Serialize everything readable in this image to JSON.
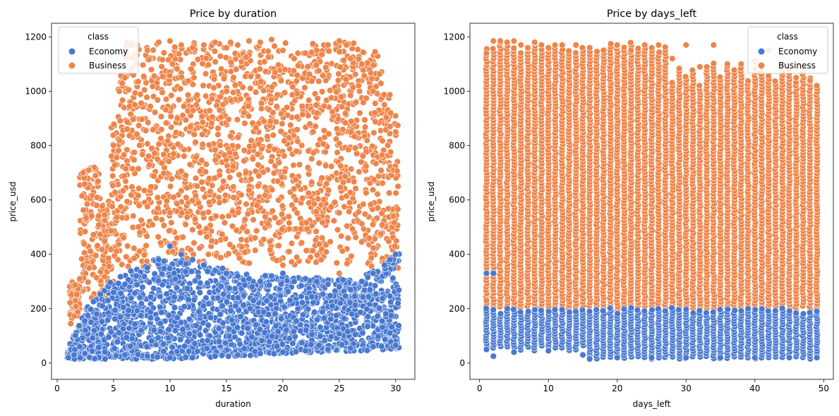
{
  "figure": {
    "charts": [
      {
        "title": "Price by duration",
        "xlabel": "duration",
        "ylabel": "price_usd",
        "legend_title": "class",
        "legend_position": "upper left"
      },
      {
        "title": "Price by days_left",
        "xlabel": "days_left",
        "ylabel": "price_usd",
        "legend_title": "class",
        "legend_position": "upper right"
      }
    ]
  },
  "colors": {
    "Economy": "#4878d0",
    "Business": "#ee854a",
    "marker_edge": "#ffffff"
  },
  "chart_data": [
    {
      "type": "scatter",
      "title": "Price by duration",
      "xlabel": "duration",
      "ylabel": "price_usd",
      "xlim": [
        -0.5,
        31.7
      ],
      "ylim": [
        -60,
        1250
      ],
      "xticks": [
        0,
        5,
        10,
        15,
        20,
        25,
        30
      ],
      "yticks": [
        0,
        200,
        400,
        600,
        800,
        1000,
        1200
      ],
      "legend": {
        "title": "class",
        "entries": [
          "Economy",
          "Business"
        ],
        "position": "upper left"
      },
      "series": [
        {
          "name": "Economy",
          "color": "#4878d0",
          "points": [
            [
              1.0,
              20
            ],
            [
              1.5,
              30
            ],
            [
              2,
              60
            ],
            [
              2.5,
              120
            ],
            [
              3,
              150
            ],
            [
              3.5,
              180
            ],
            [
              4,
              210
            ],
            [
              4.5,
              230
            ],
            [
              5,
              260
            ],
            [
              6,
              290
            ],
            [
              7,
              320
            ],
            [
              8,
              350
            ],
            [
              9,
              380
            ],
            [
              10,
              430
            ],
            [
              11,
              400
            ],
            [
              12,
              380
            ],
            [
              13,
              360
            ],
            [
              14,
              340
            ],
            [
              15,
              330
            ],
            [
              16,
              320
            ],
            [
              17,
              310
            ],
            [
              18,
              300
            ],
            [
              19,
              320
            ],
            [
              20,
              330
            ],
            [
              21,
              300
            ],
            [
              22,
              310
            ],
            [
              23,
              300
            ],
            [
              24,
              290
            ],
            [
              25,
              280
            ],
            [
              26,
              270
            ],
            [
              27,
              300
            ],
            [
              28,
              330
            ],
            [
              29,
              360
            ],
            [
              29.5,
              380
            ],
            [
              30,
              400
            ],
            [
              30.2,
              220
            ],
            [
              6,
              30
            ],
            [
              8,
              25
            ],
            [
              10,
              20
            ],
            [
              12,
              20
            ],
            [
              14,
              25
            ],
            [
              16,
              30
            ],
            [
              18,
              35
            ],
            [
              20,
              40
            ],
            [
              22,
              45
            ],
            [
              24,
              50
            ],
            [
              26,
              55
            ],
            [
              28,
              60
            ],
            [
              30,
              65
            ]
          ]
        },
        {
          "name": "Business",
          "color": "#ee854a",
          "points": [
            [
              1.2,
              145
            ],
            [
              2,
              310
            ],
            [
              2.3,
              700
            ],
            [
              2.8,
              710
            ],
            [
              3.5,
              580
            ],
            [
              4.5,
              300
            ],
            [
              5,
              800
            ],
            [
              5.5,
              1000
            ],
            [
              6,
              1050
            ],
            [
              7,
              1100
            ],
            [
              8,
              1150
            ],
            [
              9,
              1180
            ],
            [
              10,
              1185
            ],
            [
              11,
              1170
            ],
            [
              12,
              1160
            ],
            [
              13,
              1170
            ],
            [
              14,
              1180
            ],
            [
              15,
              1160
            ],
            [
              16,
              1170
            ],
            [
              17,
              1185
            ],
            [
              18,
              1180
            ],
            [
              19,
              1190
            ],
            [
              20,
              1150
            ],
            [
              21,
              1120
            ],
            [
              22,
              1140
            ],
            [
              23,
              1150
            ],
            [
              24,
              1170
            ],
            [
              25,
              1185
            ],
            [
              26,
              1120
            ],
            [
              27,
              1100
            ],
            [
              28,
              1000
            ],
            [
              29,
              950
            ],
            [
              29.5,
              870
            ],
            [
              30,
              850
            ],
            [
              30.2,
              650
            ],
            [
              29.8,
              540
            ],
            [
              6.7,
              145
            ],
            [
              5,
              300
            ],
            [
              10,
              350
            ],
            [
              15,
              340
            ],
            [
              20,
              360
            ],
            [
              25,
              330
            ]
          ]
        }
      ]
    },
    {
      "type": "scatter",
      "title": "Price by days_left",
      "xlabel": "days_left",
      "ylabel": "price_usd",
      "xlim": [
        -1.4,
        51.4
      ],
      "ylim": [
        -60,
        1250
      ],
      "xticks": [
        0,
        10,
        20,
        30,
        40,
        50
      ],
      "yticks": [
        0,
        200,
        400,
        600,
        800,
        1000,
        1200
      ],
      "legend": {
        "title": "class",
        "entries": [
          "Economy",
          "Business"
        ],
        "position": "upper right"
      },
      "days_left_range": [
        1,
        49
      ],
      "series": [
        {
          "name": "Economy",
          "color": "#4878d0",
          "points": [
            [
              1,
              50
            ],
            [
              1,
              330
            ],
            [
              2,
              25
            ],
            [
              2,
              330
            ],
            [
              5,
              40
            ],
            [
              10,
              45
            ],
            [
              15,
              30
            ],
            [
              16,
              15
            ],
            [
              20,
              20
            ],
            [
              25,
              20
            ],
            [
              30,
              20
            ],
            [
              35,
              20
            ],
            [
              40,
              20
            ],
            [
              45,
              20
            ],
            [
              49,
              20
            ],
            [
              49,
              190
            ]
          ]
        },
        {
          "name": "Business",
          "color": "#ee854a",
          "points": [
            [
              1,
              1140
            ],
            [
              2,
              1185
            ],
            [
              3,
              1185
            ],
            [
              4,
              1180
            ],
            [
              5,
              1185
            ],
            [
              6,
              1170
            ],
            [
              7,
              1160
            ],
            [
              8,
              1180
            ],
            [
              9,
              1170
            ],
            [
              10,
              1160
            ],
            [
              12,
              1170
            ],
            [
              14,
              1170
            ],
            [
              16,
              1160
            ],
            [
              18,
              1150
            ],
            [
              20,
              1170
            ],
            [
              22,
              1150
            ],
            [
              24,
              1170
            ],
            [
              26,
              1170
            ],
            [
              28,
              1120
            ],
            [
              30,
              1170
            ],
            [
              32,
              1090
            ],
            [
              34,
              1170
            ],
            [
              36,
              1100
            ],
            [
              38,
              1100
            ],
            [
              40,
              1110
            ],
            [
              42,
              1150
            ],
            [
              44,
              1100
            ],
            [
              46,
              1050
            ],
            [
              48,
              1040
            ],
            [
              49,
              1020
            ],
            [
              49,
              180
            ],
            [
              30,
              150
            ],
            [
              45,
              150
            ],
            [
              1,
              230
            ]
          ]
        }
      ]
    }
  ]
}
